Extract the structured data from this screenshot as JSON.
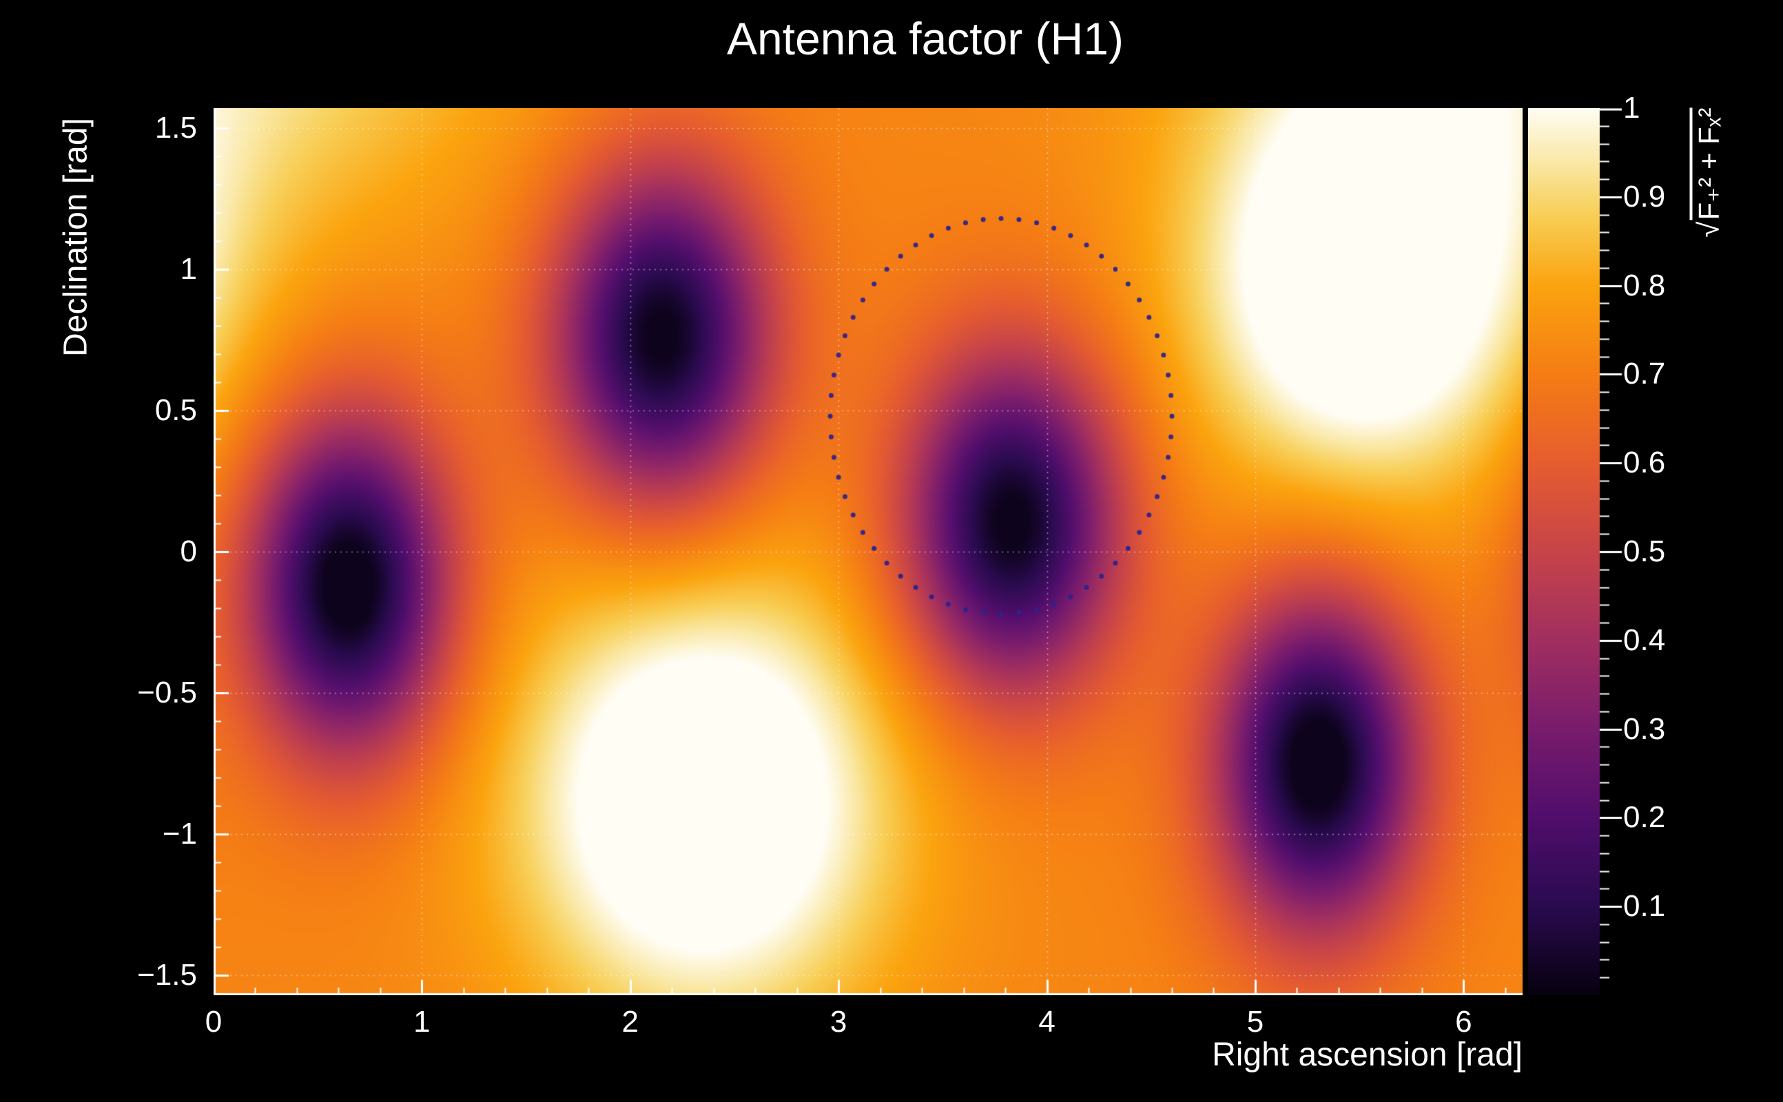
{
  "page": {
    "background": "#000000",
    "text_color": "#ffffff"
  },
  "chart_data": {
    "type": "heatmap",
    "title": "Antenna factor (H1)",
    "xlabel": "Right ascension [rad]",
    "ylabel": "Declination [rad]",
    "zlabel": "√(F₊² + Fₓ²)",
    "zlabel_radical": "√",
    "zlabel_body": "F₊² + Fₓ²",
    "xlim": [
      0,
      6.2832
    ],
    "ylim": [
      -1.5708,
      1.5708
    ],
    "zlim": [
      0,
      1
    ],
    "xticks": {
      "values": [
        0,
        1,
        2,
        3,
        4,
        5,
        6
      ],
      "labels": [
        "0",
        "1",
        "2",
        "3",
        "4",
        "5",
        "6"
      ]
    },
    "yticks": {
      "values": [
        1.5,
        1,
        0.5,
        0,
        -0.5,
        -1,
        -1.5
      ],
      "labels": [
        "1.5",
        "1",
        "0.5",
        "0",
        "−0.5",
        "−1",
        "−1.5"
      ]
    },
    "zticks": {
      "values": [
        1,
        0.9,
        0.8,
        0.7,
        0.6,
        0.5,
        0.4,
        0.3,
        0.2,
        0.1
      ],
      "labels": [
        "1",
        "0.9",
        "0.8",
        "0.7",
        "0.6",
        "0.5",
        "0.4",
        "0.3",
        "0.2",
        "0.1"
      ]
    },
    "grid": true,
    "legend": false,
    "grid_color": "rgba(255,255,255,0.5)",
    "axis_color": "#ffffff",
    "colormap": [
      [
        0.0,
        "#070110"
      ],
      [
        0.1,
        "#2a0b50"
      ],
      [
        0.2,
        "#510e6c"
      ],
      [
        0.3,
        "#791c6d"
      ],
      [
        0.4,
        "#a12f60"
      ],
      [
        0.5,
        "#c74449"
      ],
      [
        0.6,
        "#e65d2f"
      ],
      [
        0.7,
        "#f57d15"
      ],
      [
        0.8,
        "#fba40f"
      ],
      [
        0.88,
        "#f8cf57"
      ],
      [
        0.94,
        "#fae9a8"
      ],
      [
        1.0,
        "#fffdf4"
      ]
    ],
    "field": {
      "base": 0.72,
      "clamp": [
        0.02,
        1
      ],
      "wrap_x": 6.2832,
      "blobs": [
        {
          "x": 2.35,
          "y": -0.88,
          "amp": 0.45,
          "sx": 0.62,
          "sy": 0.55
        },
        {
          "x": 5.52,
          "y": 0.95,
          "amp": 0.45,
          "sx": 0.55,
          "sy": 0.5
        },
        {
          "x": 0.0,
          "y": 1.9,
          "amp": 0.22,
          "sx": 1.0,
          "sy": 0.55
        },
        {
          "x": 0.65,
          "y": -0.12,
          "amp": -0.75,
          "sx": 0.34,
          "sy": 0.42
        },
        {
          "x": 2.15,
          "y": 0.76,
          "amp": -0.72,
          "sx": 0.36,
          "sy": 0.42
        },
        {
          "x": 3.83,
          "y": 0.1,
          "amp": -0.72,
          "sx": 0.36,
          "sy": 0.42
        },
        {
          "x": 5.3,
          "y": -0.75,
          "amp": -0.75,
          "sx": 0.34,
          "sy": 0.42
        }
      ]
    },
    "extrema": {
      "minima": [
        [
          0.65,
          -0.12
        ],
        [
          2.15,
          0.76
        ],
        [
          3.83,
          0.1
        ],
        [
          5.3,
          -0.75
        ]
      ],
      "maxima": [
        [
          2.35,
          -0.88
        ],
        [
          5.52,
          0.95
        ]
      ]
    },
    "overlay_ring": {
      "cx": 3.78,
      "cy": 0.48,
      "rx": 0.82,
      "ry": 0.7,
      "dots": 60,
      "dot_radius_px": 3.5,
      "color": "rgba(45,35,140,0.95)"
    }
  }
}
